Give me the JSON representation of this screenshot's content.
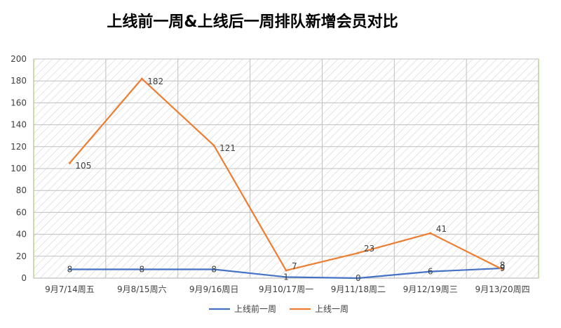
{
  "chart_data": {
    "type": "line",
    "title": "上线前一周&上线后一周排队新增会员对比",
    "xlabel": "",
    "ylabel": "",
    "categories": [
      "9月7/14周五",
      "9月8/15周六",
      "9月9/16周日",
      "9月10/17周一",
      "9月11/18周二",
      "9月12/19周三",
      "9月13/20周四"
    ],
    "ylim": [
      0,
      200
    ],
    "yticks": [
      0,
      20,
      40,
      60,
      80,
      100,
      120,
      140,
      160,
      180,
      200
    ],
    "grid": true,
    "legend_position": "bottom",
    "series": [
      {
        "name": "上线前一周",
        "color": "#4472C4",
        "values": [
          8,
          8,
          8,
          1,
          0,
          6,
          9
        ]
      },
      {
        "name": "上线一周",
        "color": "#ED7D31",
        "values": [
          105,
          182,
          121,
          7,
          23,
          41,
          8
        ]
      }
    ],
    "colors": {
      "plot_border": "#9BBB59",
      "hatch": "#d9d9d9",
      "grid": "#bfbfbf",
      "text": "#404040"
    }
  }
}
